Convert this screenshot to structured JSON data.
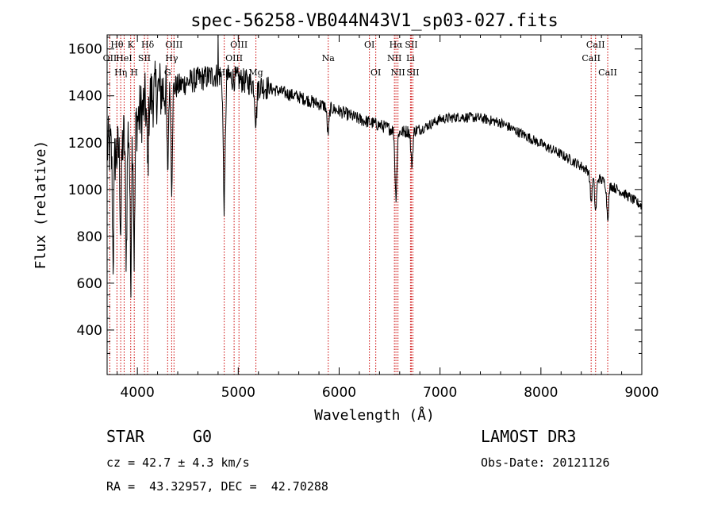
{
  "chart_data": {
    "type": "line",
    "title": "spec-56258-VB044N43V1_sp03-027.fits",
    "xlabel": "Wavelength (Å)",
    "ylabel": "Flux (relative)",
    "xlim": [
      3700,
      9000
    ],
    "ylim": [
      210,
      1660
    ],
    "x_ticks": [
      4000,
      5000,
      6000,
      7000,
      8000,
      9000
    ],
    "y_ticks": [
      400,
      600,
      800,
      1000,
      1200,
      1400,
      1600
    ],
    "line_color": "#000000",
    "marker_color": "#cc0000",
    "continuum": [
      {
        "x": 3700,
        "y": 1180
      },
      {
        "x": 3800,
        "y": 1150
      },
      {
        "x": 3900,
        "y": 1250
      },
      {
        "x": 4000,
        "y": 1300
      },
      {
        "x": 4100,
        "y": 1380
      },
      {
        "x": 4200,
        "y": 1420
      },
      {
        "x": 4300,
        "y": 1430
      },
      {
        "x": 4400,
        "y": 1440
      },
      {
        "x": 4500,
        "y": 1460
      },
      {
        "x": 4600,
        "y": 1470
      },
      {
        "x": 4700,
        "y": 1480
      },
      {
        "x": 4800,
        "y": 1490
      },
      {
        "x": 4900,
        "y": 1480
      },
      {
        "x": 5000,
        "y": 1470
      },
      {
        "x": 5200,
        "y": 1445
      },
      {
        "x": 5400,
        "y": 1420
      },
      {
        "x": 5600,
        "y": 1395
      },
      {
        "x": 5800,
        "y": 1365
      },
      {
        "x": 6000,
        "y": 1335
      },
      {
        "x": 6200,
        "y": 1300
      },
      {
        "x": 6400,
        "y": 1275
      },
      {
        "x": 6600,
        "y": 1245
      },
      {
        "x": 6800,
        "y": 1255
      },
      {
        "x": 7000,
        "y": 1300
      },
      {
        "x": 7200,
        "y": 1310
      },
      {
        "x": 7400,
        "y": 1305
      },
      {
        "x": 7600,
        "y": 1285
      },
      {
        "x": 7800,
        "y": 1240
      },
      {
        "x": 8000,
        "y": 1195
      },
      {
        "x": 8200,
        "y": 1150
      },
      {
        "x": 8400,
        "y": 1100
      },
      {
        "x": 8600,
        "y": 1040
      },
      {
        "x": 8800,
        "y": 990
      },
      {
        "x": 9000,
        "y": 930
      }
    ],
    "absorption_features": [
      {
        "x": 3760,
        "depth": 450
      },
      {
        "x": 3835,
        "depth": 350
      },
      {
        "x": 3890,
        "depth": 500
      },
      {
        "x": 3934,
        "depth": 620
      },
      {
        "x": 3969,
        "depth": 560
      },
      {
        "x": 4102,
        "depth": 300
      },
      {
        "x": 4300,
        "depth": 380
      },
      {
        "x": 4340,
        "depth": 420
      },
      {
        "x": 4861,
        "depth": 550
      },
      {
        "x": 5175,
        "depth": 150
      },
      {
        "x": 5890,
        "depth": 110
      },
      {
        "x": 6563,
        "depth": 280
      },
      {
        "x": 6720,
        "depth": 140
      },
      {
        "x": 8498,
        "depth": 120
      },
      {
        "x": 8542,
        "depth": 150
      },
      {
        "x": 8662,
        "depth": 140
      }
    ],
    "spikes": [
      {
        "x": 4800,
        "y": 1660
      }
    ],
    "line_markers": [
      {
        "x": 3727,
        "label": "OII",
        "row": 1
      },
      {
        "x": 3798,
        "label": "Hθ",
        "row": 0
      },
      {
        "x": 3835,
        "label": "Hη",
        "row": 2
      },
      {
        "x": 3869,
        "label": "HeI",
        "row": 1
      },
      {
        "x": 3934,
        "label": "K",
        "row": 0
      },
      {
        "x": 3969,
        "label": "H",
        "row": 2
      },
      {
        "x": 4070,
        "label": "SII",
        "row": 1
      },
      {
        "x": 4102,
        "label": "Hδ",
        "row": 0
      },
      {
        "x": 4300,
        "label": "G",
        "row": 2
      },
      {
        "x": 4340,
        "label": "Hγ",
        "row": 1
      },
      {
        "x": 4363,
        "label": "OIII",
        "row": 0
      },
      {
        "x": 4861,
        "label": "Hβ",
        "row": 2
      },
      {
        "x": 4959,
        "label": "OIII",
        "row": 1
      },
      {
        "x": 5007,
        "label": "OIII",
        "row": 0
      },
      {
        "x": 5175,
        "label": "Mg",
        "row": 2
      },
      {
        "x": 5892,
        "label": "Na",
        "row": 1
      },
      {
        "x": 6300,
        "label": "OI",
        "row": 0
      },
      {
        "x": 6363,
        "label": "OI",
        "row": 2
      },
      {
        "x": 6548,
        "label": "NII",
        "row": 1
      },
      {
        "x": 6563,
        "label": "Hα",
        "row": 0
      },
      {
        "x": 6583,
        "label": "NII",
        "row": 2
      },
      {
        "x": 6707,
        "label": "Li",
        "row": 1
      },
      {
        "x": 6716,
        "label": "SII",
        "row": 0
      },
      {
        "x": 6731,
        "label": "SII",
        "row": 2
      },
      {
        "x": 8498,
        "label": "CaII",
        "row": 1
      },
      {
        "x": 8542,
        "label": "CaII",
        "row": 0
      },
      {
        "x": 8662,
        "label": "CaII",
        "row": 2
      }
    ]
  },
  "footer": {
    "object_class": "STAR",
    "subclass": "G0",
    "survey": "LAMOST DR3",
    "redshift": "cz = 42.7 ± 4.3 km/s",
    "obs_date": "Obs-Date: 20121126",
    "coords": "RA =  43.32957, DEC =  42.70288"
  }
}
